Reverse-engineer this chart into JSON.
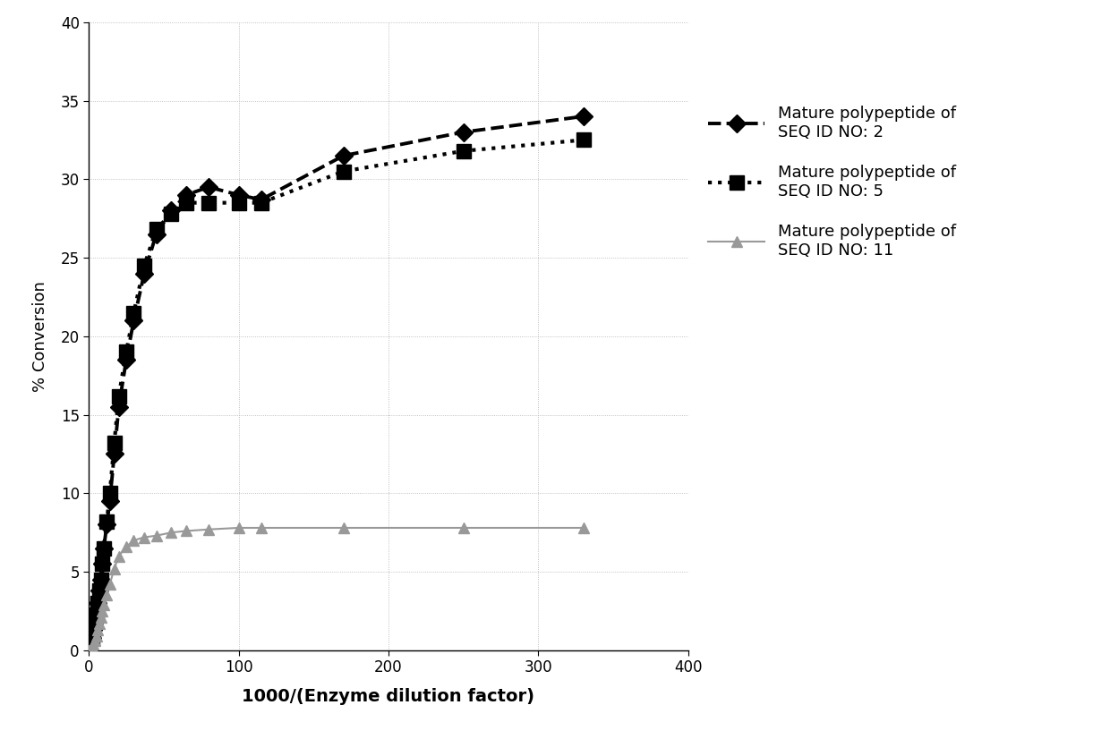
{
  "seq2_x": [
    0,
    2,
    3,
    4,
    5,
    6,
    7,
    8,
    9,
    10,
    12,
    14,
    17,
    20,
    25,
    30,
    37,
    45,
    55,
    65,
    80,
    100,
    115,
    170,
    250,
    330
  ],
  "seq2_y": [
    0,
    0.8,
    1.3,
    1.8,
    2.3,
    3.0,
    3.8,
    4.5,
    5.5,
    6.5,
    8.0,
    9.5,
    12.5,
    15.5,
    18.5,
    21.0,
    24.0,
    26.5,
    28.0,
    29.0,
    29.5,
    29.0,
    28.7,
    31.5,
    33.0,
    34.0
  ],
  "seq5_x": [
    0,
    2,
    3,
    4,
    5,
    6,
    7,
    8,
    9,
    10,
    12,
    14,
    17,
    20,
    25,
    30,
    37,
    45,
    55,
    65,
    80,
    100,
    115,
    170,
    250,
    330
  ],
  "seq5_y": [
    0,
    0.8,
    1.3,
    1.8,
    2.3,
    3.0,
    3.8,
    4.5,
    5.5,
    6.5,
    8.2,
    10.0,
    13.2,
    16.2,
    19.0,
    21.5,
    24.5,
    26.8,
    27.8,
    28.5,
    28.5,
    28.5,
    28.5,
    30.5,
    31.8,
    32.5
  ],
  "seq11_x": [
    0,
    2,
    3,
    4,
    5,
    6,
    7,
    8,
    9,
    10,
    12,
    14,
    17,
    20,
    25,
    30,
    37,
    45,
    55,
    65,
    80,
    100,
    115,
    170,
    250,
    330
  ],
  "seq11_y": [
    0,
    0.2,
    0.4,
    0.6,
    0.9,
    1.3,
    1.7,
    2.1,
    2.5,
    2.9,
    3.5,
    4.2,
    5.2,
    6.0,
    6.6,
    7.0,
    7.2,
    7.3,
    7.5,
    7.6,
    7.7,
    7.8,
    7.8,
    7.8,
    7.8,
    7.8
  ],
  "seq2_color": "#000000",
  "seq5_color": "#000000",
  "seq11_color": "#999999",
  "xlabel": "1000/(Enzyme dilution factor)",
  "ylabel": "% Conversion",
  "xlim": [
    0,
    400
  ],
  "ylim": [
    0,
    40
  ],
  "xticks": [
    0,
    100,
    200,
    300,
    400
  ],
  "yticks": [
    0,
    5,
    10,
    15,
    20,
    25,
    30,
    35,
    40
  ],
  "legend_seq2": [
    "Mature polypeptide of",
    "SEQ ID NO: 2"
  ],
  "legend_seq5": [
    "Mature polypeptide of",
    "SEQ ID NO: 5"
  ],
  "legend_seq11": [
    "Mature polypeptide of",
    "SEQ ID NO: 11"
  ],
  "grid_color": "#b0b0b0",
  "background_color": "#ffffff"
}
